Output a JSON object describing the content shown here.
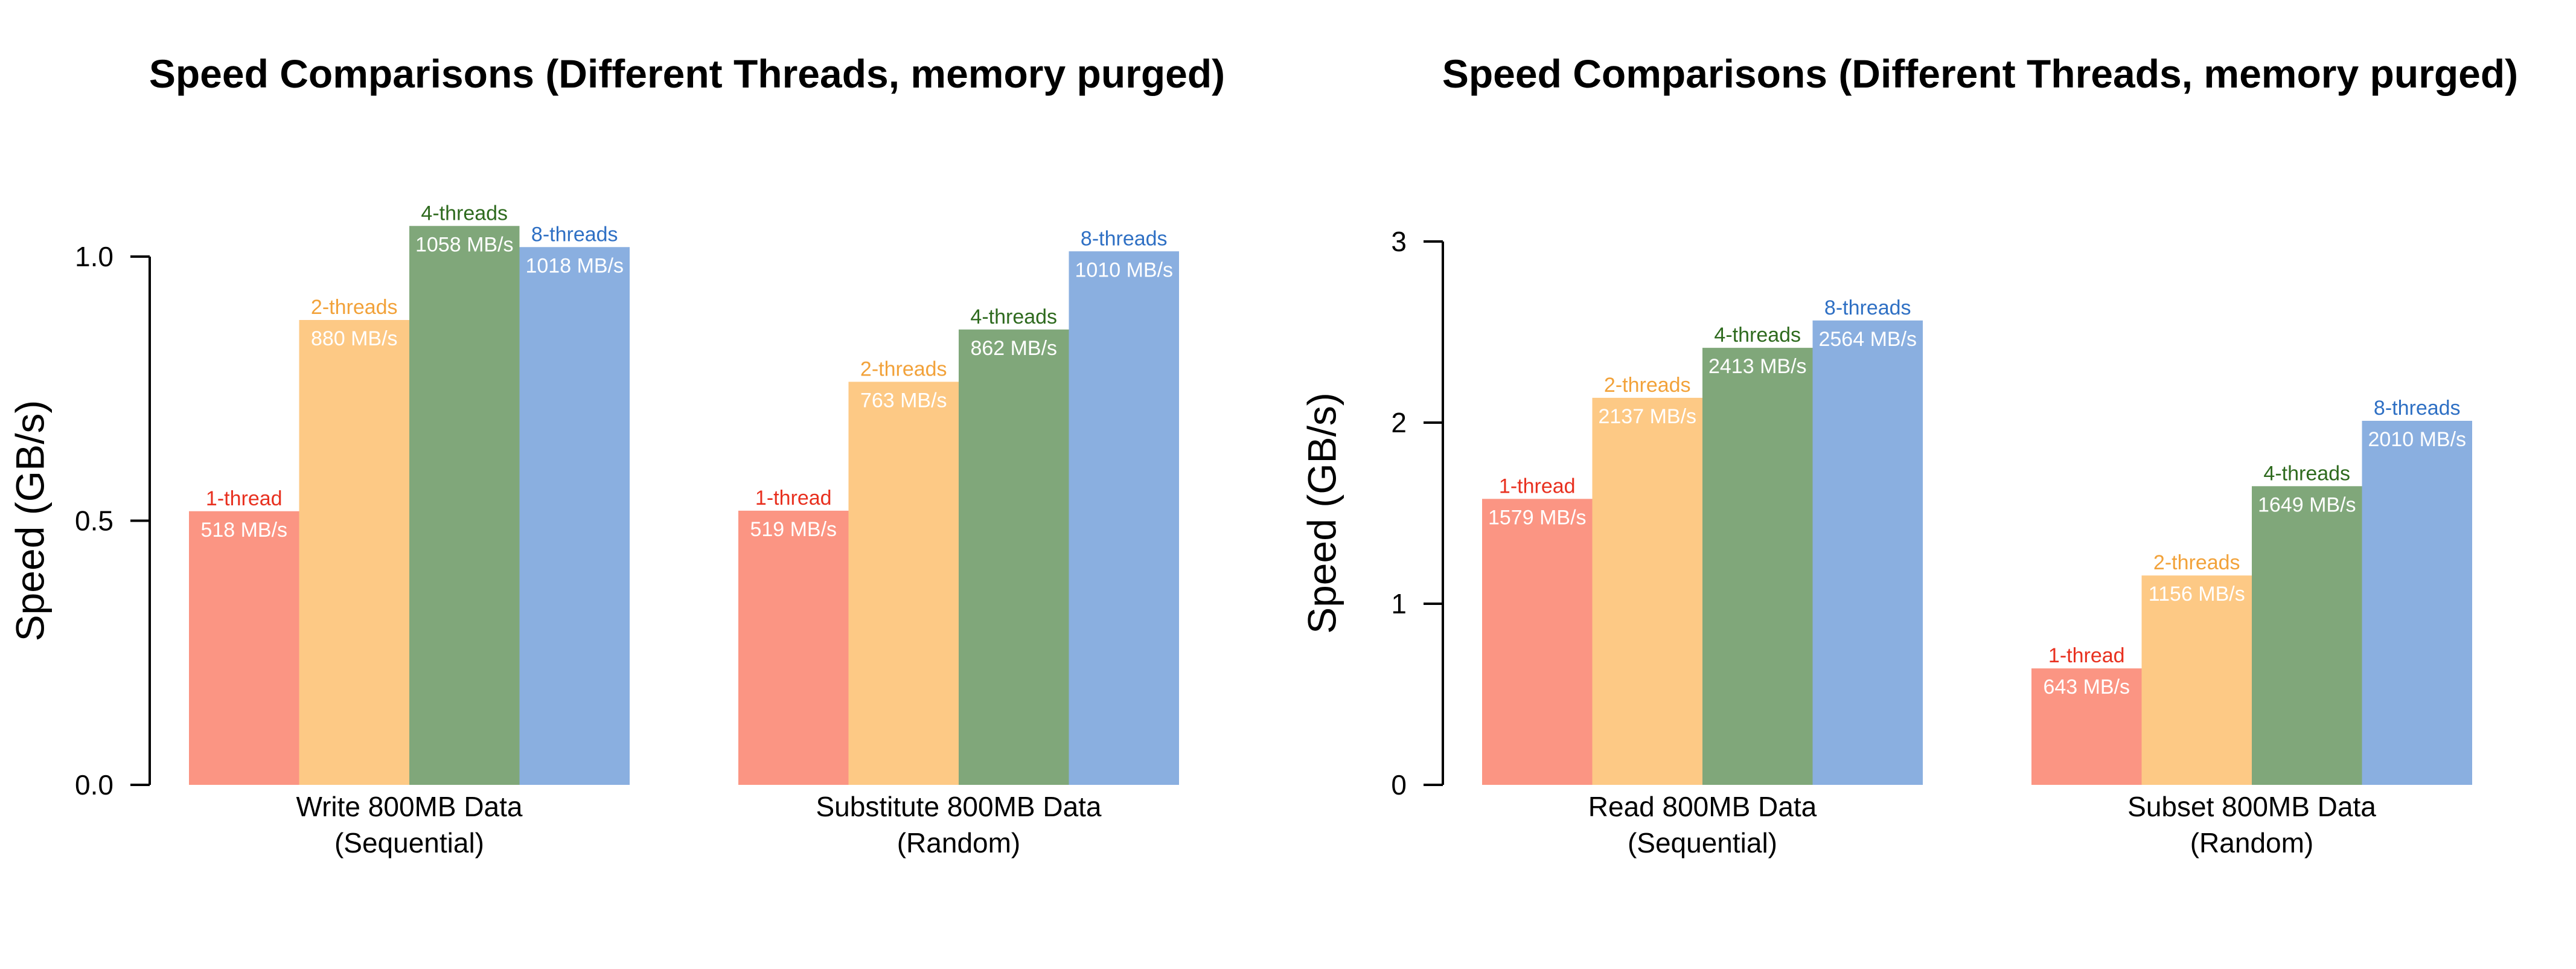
{
  "colors": {
    "1-thread": "#FB9583",
    "2-threads": "#FDC985",
    "4-threads": "#80A77A",
    "8-threads": "#8AAFE0",
    "1-thread-text": "#E8301F",
    "2-threads-text": "#F2A23A",
    "4-threads-text": "#2E6A1E",
    "8-threads-text": "#2F70C4",
    "axis": "#000000",
    "value-label": "#FFFFFF"
  },
  "chart_data": [
    {
      "type": "bar",
      "title": "Speed Comparisons (Different Threads, memory purged)",
      "ylabel": "Speed (GB/s)",
      "xlabel": "",
      "ylim": [
        0,
        1.0
      ],
      "yticks": [
        0.0,
        0.5,
        1.0
      ],
      "ytick_labels": [
        "0.0",
        "0.5",
        "1.0"
      ],
      "grid": false,
      "categories": [
        {
          "line1": "Write 800MB Data",
          "line2": "(Sequential)"
        },
        {
          "line1": "Substitute 800MB Data",
          "line2": "(Random)"
        }
      ],
      "series": [
        {
          "name": "1-thread",
          "values": [
            0.518,
            0.519
          ],
          "labels": [
            "518 MB/s",
            "519 MB/s"
          ]
        },
        {
          "name": "2-threads",
          "values": [
            0.88,
            0.763
          ],
          "labels": [
            "880 MB/s",
            "763 MB/s"
          ]
        },
        {
          "name": "4-threads",
          "values": [
            1.058,
            0.862
          ],
          "labels": [
            "1058 MB/s",
            "862 MB/s"
          ]
        },
        {
          "name": "8-threads",
          "values": [
            1.018,
            1.01
          ],
          "labels": [
            "1018 MB/s",
            "1010 MB/s"
          ]
        }
      ]
    },
    {
      "type": "bar",
      "title": "Speed Comparisons (Different Threads, memory purged)",
      "ylabel": "Speed (GB/s)",
      "xlabel": "",
      "ylim": [
        0,
        3
      ],
      "yticks": [
        0,
        1,
        2,
        3
      ],
      "ytick_labels": [
        "0",
        "1",
        "2",
        "3"
      ],
      "grid": false,
      "categories": [
        {
          "line1": "Read 800MB Data",
          "line2": "(Sequential)"
        },
        {
          "line1": "Subset 800MB Data",
          "line2": "(Random)"
        }
      ],
      "series": [
        {
          "name": "1-thread",
          "values": [
            1.579,
            0.643
          ],
          "labels": [
            "1579 MB/s",
            "643 MB/s"
          ]
        },
        {
          "name": "2-threads",
          "values": [
            2.137,
            1.156
          ],
          "labels": [
            "2137 MB/s",
            "1156 MB/s"
          ]
        },
        {
          "name": "4-threads",
          "values": [
            2.413,
            1.649
          ],
          "labels": [
            "2413 MB/s",
            "1649 MB/s"
          ]
        },
        {
          "name": "8-threads",
          "values": [
            2.564,
            2.01
          ],
          "labels": [
            "2564 MB/s",
            "2010 MB/s"
          ]
        }
      ]
    }
  ]
}
